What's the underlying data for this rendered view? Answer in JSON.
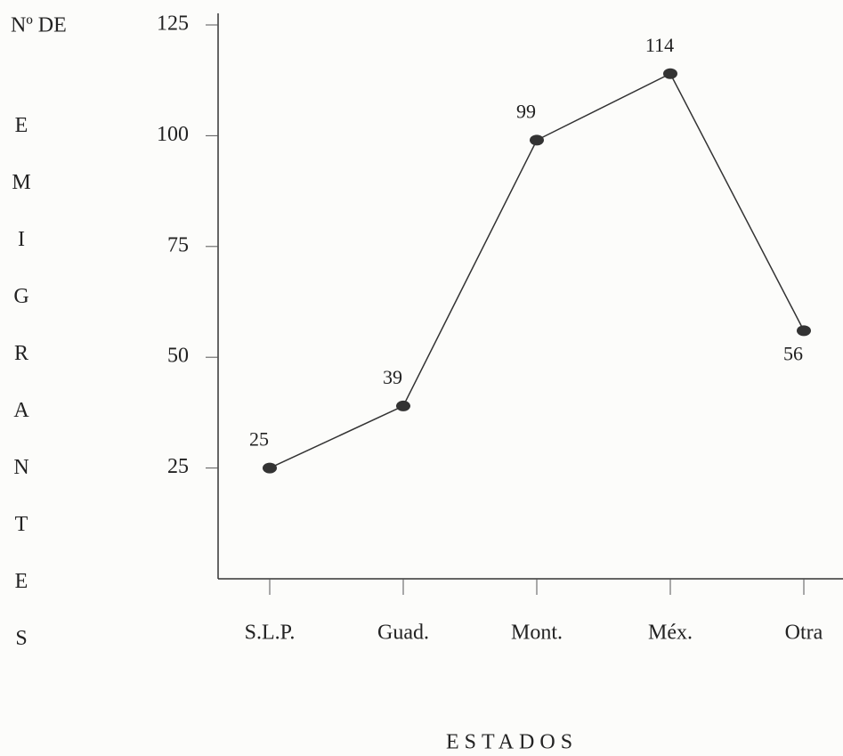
{
  "chart_data": {
    "type": "line",
    "y_label_top": "Nº DE",
    "y_label": "EMIGRANTES",
    "x_label": "ESTADOS",
    "categories": [
      "S.L.P.",
      "Guad.",
      "Mont.",
      "Méx.",
      "Otra"
    ],
    "values": [
      25,
      39,
      99,
      114,
      56
    ],
    "color": "#333333",
    "ylim": [
      0,
      125
    ],
    "yticks": [
      25,
      50,
      75,
      100,
      125
    ],
    "grid": false
  }
}
